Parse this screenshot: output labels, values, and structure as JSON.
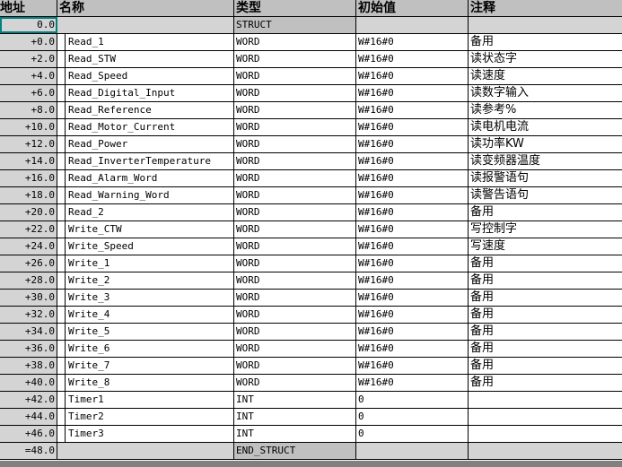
{
  "headers": {
    "address": "地址",
    "name": "名称",
    "type": "类型",
    "initial": "初始值",
    "comment": "注释"
  },
  "struct_start": {
    "address": "0.0",
    "type": "STRUCT"
  },
  "struct_end": {
    "address": "=48.0",
    "type": "END_STRUCT"
  },
  "rows": [
    {
      "address": "+0.0",
      "name": "Read_1",
      "type": "WORD",
      "initial": "W#16#0",
      "comment": "备用"
    },
    {
      "address": "+2.0",
      "name": "Read_STW",
      "type": "WORD",
      "initial": "W#16#0",
      "comment": "读状态字"
    },
    {
      "address": "+4.0",
      "name": "Read_Speed",
      "type": "WORD",
      "initial": "W#16#0",
      "comment": "读速度"
    },
    {
      "address": "+6.0",
      "name": "Read_Digital_Input",
      "type": "WORD",
      "initial": "W#16#0",
      "comment": "读数字输入"
    },
    {
      "address": "+8.0",
      "name": "Read_Reference",
      "type": "WORD",
      "initial": "W#16#0",
      "comment": "读参考%"
    },
    {
      "address": "+10.0",
      "name": "Read_Motor_Current",
      "type": "WORD",
      "initial": "W#16#0",
      "comment": "读电机电流"
    },
    {
      "address": "+12.0",
      "name": "Read_Power",
      "type": "WORD",
      "initial": "W#16#0",
      "comment": "读功率KW"
    },
    {
      "address": "+14.0",
      "name": "Read_InverterTemperature",
      "type": "WORD",
      "initial": "W#16#0",
      "comment": "读变频器温度"
    },
    {
      "address": "+16.0",
      "name": "Read_Alarm_Word",
      "type": "WORD",
      "initial": "W#16#0",
      "comment": "读报警语句"
    },
    {
      "address": "+18.0",
      "name": "Read_Warning_Word",
      "type": "WORD",
      "initial": "W#16#0",
      "comment": "读警告语句"
    },
    {
      "address": "+20.0",
      "name": "Read_2",
      "type": "WORD",
      "initial": "W#16#0",
      "comment": "备用"
    },
    {
      "address": "+22.0",
      "name": "Write_CTW",
      "type": "WORD",
      "initial": "W#16#0",
      "comment": "写控制字"
    },
    {
      "address": "+24.0",
      "name": "Write_Speed",
      "type": "WORD",
      "initial": "W#16#0",
      "comment": "写速度"
    },
    {
      "address": "+26.0",
      "name": "Write_1",
      "type": "WORD",
      "initial": "W#16#0",
      "comment": "备用"
    },
    {
      "address": "+28.0",
      "name": "Write_2",
      "type": "WORD",
      "initial": "W#16#0",
      "comment": "备用"
    },
    {
      "address": "+30.0",
      "name": "Write_3",
      "type": "WORD",
      "initial": "W#16#0",
      "comment": "备用"
    },
    {
      "address": "+32.0",
      "name": "Write_4",
      "type": "WORD",
      "initial": "W#16#0",
      "comment": "备用"
    },
    {
      "address": "+34.0",
      "name": "Write_5",
      "type": "WORD",
      "initial": "W#16#0",
      "comment": "备用"
    },
    {
      "address": "+36.0",
      "name": "Write_6",
      "type": "WORD",
      "initial": "W#16#0",
      "comment": "备用"
    },
    {
      "address": "+38.0",
      "name": "Write_7",
      "type": "WORD",
      "initial": "W#16#0",
      "comment": "备用"
    },
    {
      "address": "+40.0",
      "name": "Write_8",
      "type": "WORD",
      "initial": "W#16#0",
      "comment": "备用"
    },
    {
      "address": "+42.0",
      "name": "Timer1",
      "type": "INT",
      "initial": "0",
      "comment": ""
    },
    {
      "address": "+44.0",
      "name": "Timer2",
      "type": "INT",
      "initial": "0",
      "comment": ""
    },
    {
      "address": "+46.0",
      "name": "Timer3",
      "type": "INT",
      "initial": "0",
      "comment": ""
    }
  ]
}
